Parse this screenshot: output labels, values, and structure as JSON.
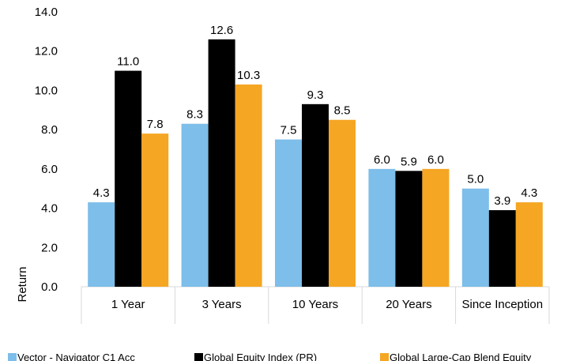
{
  "chart_data": {
    "type": "bar",
    "title": "",
    "xlabel": "",
    "ylabel": "Return",
    "ylim": [
      0,
      14
    ],
    "yticks": [
      "0.0",
      "2.0",
      "4.0",
      "6.0",
      "8.0",
      "10.0",
      "12.0",
      "14.0"
    ],
    "grid": "vertical category separators",
    "legend_position": "bottom",
    "categories": [
      "1 Year",
      "3 Years",
      "10 Years",
      "20 Years",
      "Since Inception"
    ],
    "series": [
      {
        "name": "Vector - Navigator C1 Acc",
        "color": "#7DBEEA",
        "values": [
          4.3,
          8.3,
          7.5,
          6.0,
          5.0
        ],
        "labels": [
          "4.3",
          "8.3",
          "7.5",
          "6.0",
          "5.0"
        ]
      },
      {
        "name": "Global Equity Index (PR)",
        "color": "#000000",
        "values": [
          11.0,
          12.6,
          9.3,
          5.9,
          3.9
        ],
        "labels": [
          "11.0",
          "12.6",
          "9.3",
          "5.9",
          "3.9"
        ]
      },
      {
        "name": "Global Large-Cap Blend Equity",
        "color": "#F5A623",
        "values": [
          7.8,
          10.3,
          8.5,
          6.0,
          4.3
        ],
        "labels": [
          "7.8",
          "10.3",
          "8.5",
          "6.0",
          "4.3"
        ]
      }
    ]
  }
}
